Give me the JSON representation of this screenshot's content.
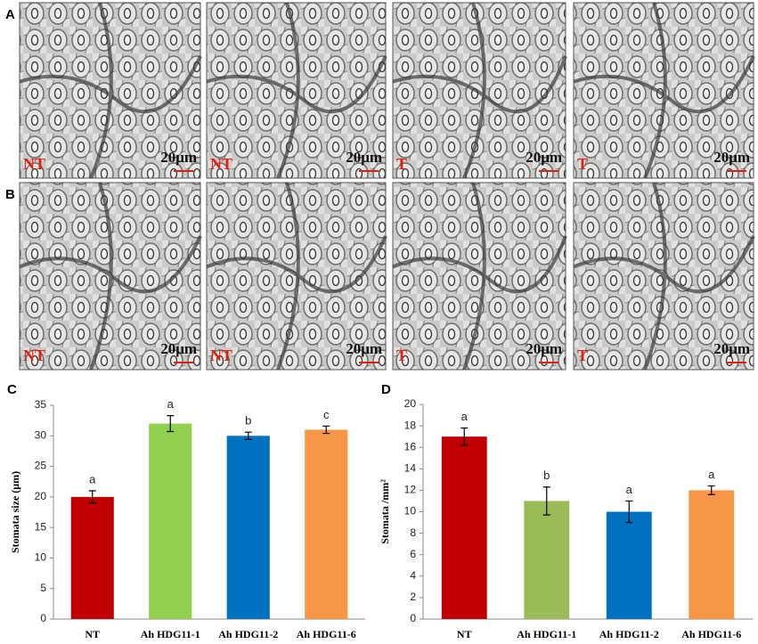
{
  "micrographs": [
    {
      "letter": "A",
      "images": [
        {
          "label": "NT",
          "scale": "20μm"
        },
        {
          "label": "NT",
          "scale": "20μm"
        },
        {
          "label": "T",
          "scale": "20μm"
        },
        {
          "label": "T",
          "scale": "20μm"
        }
      ]
    },
    {
      "letter": "B",
      "images": [
        {
          "label": "NT",
          "scale": "20μm"
        },
        {
          "label": "NT",
          "scale": "20μm"
        },
        {
          "label": "T",
          "scale": "20μm"
        },
        {
          "label": "T",
          "scale": "20μm"
        }
      ]
    }
  ],
  "chart_data": [
    {
      "type": "bar",
      "panel_label": "C",
      "ylabel": "Stomata size (μm)",
      "categories": [
        "NT",
        "Ah HDG11-1",
        "Ah HDG11-2",
        "Ah HDG11-6"
      ],
      "values": [
        20,
        32,
        30,
        31
      ],
      "errors": [
        1,
        1.3,
        0.6,
        0.6
      ],
      "annotations": [
        "a",
        "a",
        "b",
        "c"
      ],
      "colors": [
        "#c00000",
        "#92d050",
        "#0070c0",
        "#f79646"
      ],
      "ylim": [
        0,
        35
      ],
      "yticks": [
        0,
        5,
        10,
        15,
        20,
        25,
        30,
        35
      ]
    },
    {
      "type": "bar",
      "panel_label": "D",
      "ylabel": "Stomata /mm²",
      "categories": [
        "NT",
        "Ah HDG11-1",
        "Ah HDG11-2",
        "Ah HDG11-6"
      ],
      "values": [
        17,
        11,
        10,
        12
      ],
      "errors": [
        0.8,
        1.3,
        1.0,
        0.4
      ],
      "annotations": [
        "a",
        "b",
        "a",
        "a"
      ],
      "colors": [
        "#c00000",
        "#9bbb59",
        "#0070c0",
        "#f79646"
      ],
      "ylim": [
        0,
        20
      ],
      "yticks": [
        0,
        2,
        4,
        6,
        8,
        10,
        12,
        14,
        16,
        18,
        20
      ]
    }
  ]
}
